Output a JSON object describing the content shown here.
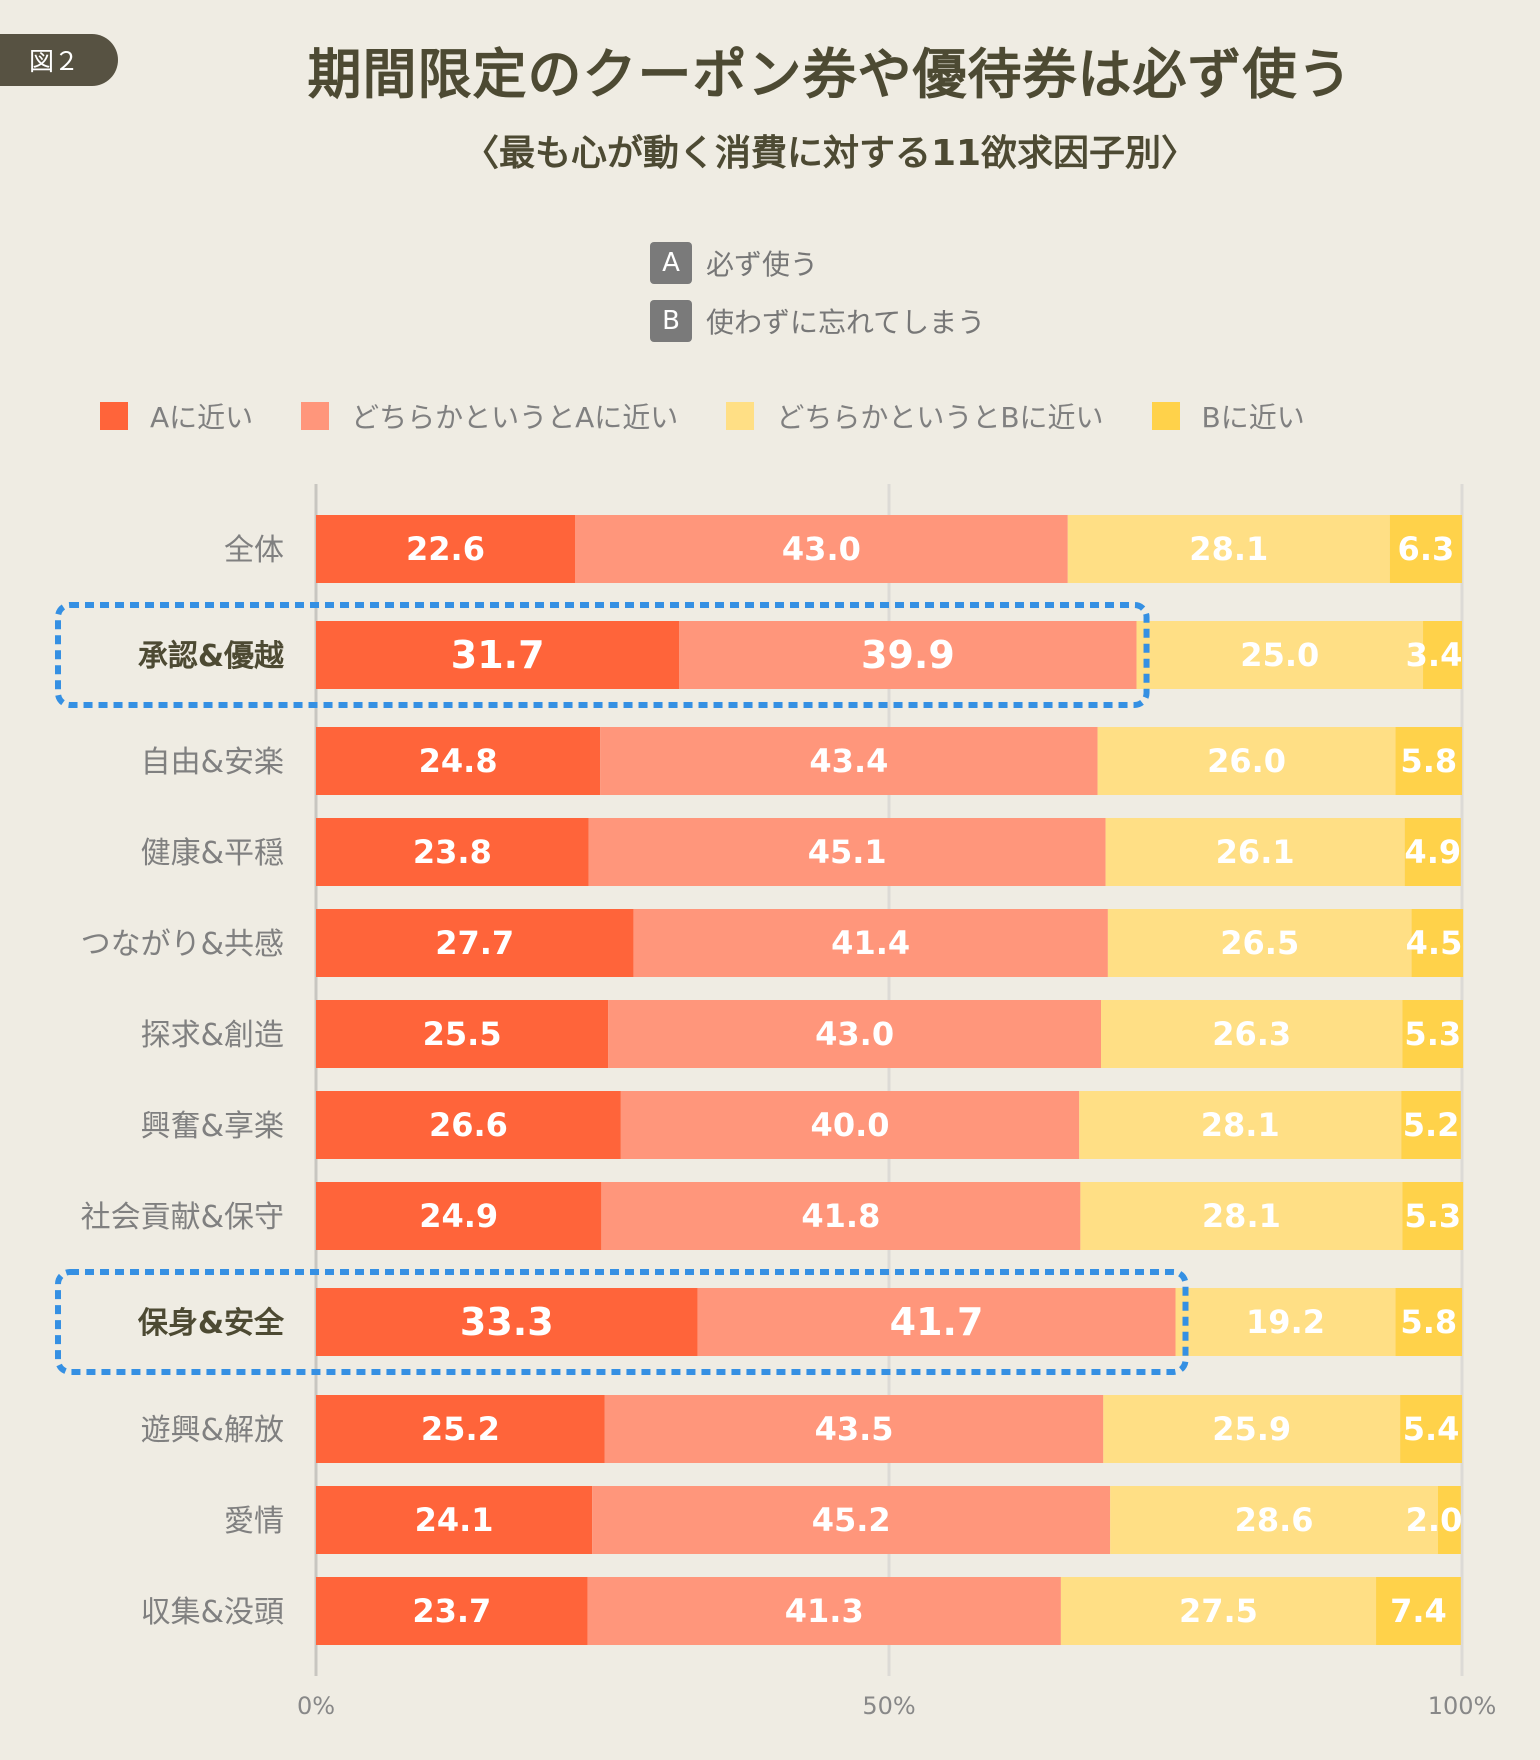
{
  "figure_badge": "図２",
  "title": "期間限定のクーポン券や優待券は必ず使う",
  "subtitle": "〈最も心が動く消費に対する11欲求因子別〉",
  "ab_legend": [
    {
      "key": "A",
      "text": "必ず使う"
    },
    {
      "key": "B",
      "text": "使わずに忘れてしまう"
    }
  ],
  "colors": {
    "background": "#efece3",
    "title": "#4d4a33",
    "highlight_box": "#3590e3",
    "category_default": "#808080",
    "category_highlight": "#4d4a33",
    "gridline": "#dcdad6",
    "axis": "#c8c6c0"
  },
  "chart_data": {
    "type": "bar",
    "orientation": "horizontal",
    "stacked": true,
    "title": "期間限定のクーポン券や優待券は必ず使う",
    "subtitle": "〈最も心が動く消費に対する11欲求因子別〉",
    "xlabel": "",
    "ylabel": "",
    "xlim": [
      0,
      100
    ],
    "x_ticks": [
      0,
      50,
      100
    ],
    "x_tick_labels": [
      "0%",
      "50%",
      "100%"
    ],
    "grid": true,
    "legend_position": "top",
    "categories": [
      "全体",
      "承認&優越",
      "自由&安楽",
      "健康&平穏",
      "つながり&共感",
      "探求&創造",
      "興奮&享楽",
      "社会貢献&保守",
      "保身&安全",
      "遊興&解放",
      "愛情",
      "収集&没頭"
    ],
    "highlighted_categories": [
      "承認&優越",
      "保身&安全"
    ],
    "series": [
      {
        "name": "Aに近い",
        "color": "#ff643a",
        "values": [
          22.6,
          31.7,
          24.8,
          23.8,
          27.7,
          25.5,
          26.6,
          24.9,
          33.3,
          25.2,
          24.1,
          23.7
        ]
      },
      {
        "name": "どちらかというとAに近い",
        "color": "#ff967b",
        "values": [
          43.0,
          39.9,
          43.4,
          45.1,
          41.4,
          43.0,
          40.0,
          41.8,
          41.7,
          43.5,
          45.2,
          41.3
        ]
      },
      {
        "name": "どちらかというとBに近い",
        "color": "#ffdf85",
        "values": [
          28.1,
          25.0,
          26.0,
          26.1,
          26.5,
          26.3,
          28.1,
          28.1,
          19.2,
          25.9,
          28.6,
          27.5
        ]
      },
      {
        "name": "Bに近い",
        "color": "#ffd24a",
        "values": [
          6.3,
          3.4,
          5.8,
          4.9,
          4.5,
          5.3,
          5.2,
          5.3,
          5.8,
          5.4,
          2.0,
          7.4
        ]
      }
    ]
  }
}
